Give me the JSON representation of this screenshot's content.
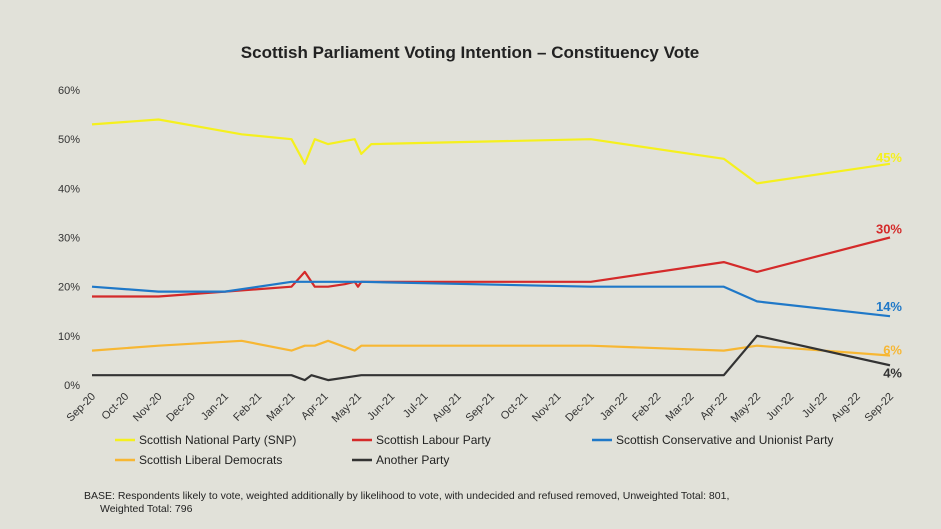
{
  "chart_data": {
    "type": "line",
    "title": "Scottish Parliament Voting Intention – Constituency Vote",
    "y_ticks": [
      "0%",
      "10%",
      "20%",
      "30%",
      "40%",
      "50%",
      "60%"
    ],
    "ylim": [
      0,
      60
    ],
    "x_ticks": [
      "Sep-20",
      "Oct-20",
      "Nov-20",
      "Dec-20",
      "Jan-21",
      "Feb-21",
      "Mar-21",
      "Apr-21",
      "May-21",
      "Jun-21",
      "Jul-21",
      "Aug-21",
      "Sep-21",
      "Oct-21",
      "Nov-21",
      "Dec-21",
      "Jan-22",
      "Feb-22",
      "Mar-22",
      "Apr-22",
      "May-22",
      "Jun-22",
      "Jul-22",
      "Aug-22",
      "Sep-22"
    ],
    "grid": false,
    "legend_placement": "bottom",
    "series": [
      {
        "name": "Scottish National Party (SNP)",
        "color": "#f5f01e",
        "end_label": "45%",
        "points": [
          [
            0,
            53
          ],
          [
            2,
            54
          ],
          [
            4.5,
            51
          ],
          [
            6,
            50
          ],
          [
            6.4,
            45
          ],
          [
            6.7,
            50
          ],
          [
            7.1,
            49
          ],
          [
            7.5,
            49.5
          ],
          [
            7.9,
            50
          ],
          [
            8.1,
            47
          ],
          [
            8.4,
            49
          ],
          [
            15,
            50
          ],
          [
            19,
            46
          ],
          [
            20,
            41
          ],
          [
            24,
            45
          ]
        ]
      },
      {
        "name": "Scottish Labour Party",
        "color": "#d42a2a",
        "end_label": "30%",
        "points": [
          [
            0,
            18
          ],
          [
            2,
            18
          ],
          [
            4,
            19
          ],
          [
            6,
            20
          ],
          [
            6.4,
            23
          ],
          [
            6.7,
            20
          ],
          [
            7.1,
            20
          ],
          [
            7.6,
            20.5
          ],
          [
            7.9,
            21
          ],
          [
            8,
            20
          ],
          [
            8.1,
            21
          ],
          [
            15,
            21
          ],
          [
            19,
            25
          ],
          [
            20,
            23
          ],
          [
            24,
            30
          ]
        ]
      },
      {
        "name": "Scottish Conservative and Unionist Party",
        "color": "#1f78c8",
        "end_label": "14%",
        "points": [
          [
            0,
            20
          ],
          [
            2,
            19
          ],
          [
            4,
            19
          ],
          [
            6,
            21
          ],
          [
            8.1,
            21
          ],
          [
            15,
            20
          ],
          [
            19,
            20
          ],
          [
            20,
            17
          ],
          [
            24,
            14
          ]
        ]
      },
      {
        "name": "Scottish Liberal Democrats",
        "color": "#f7b733",
        "end_label": "6%",
        "points": [
          [
            0,
            7
          ],
          [
            2,
            8
          ],
          [
            4.5,
            9
          ],
          [
            6,
            7
          ],
          [
            6.4,
            8
          ],
          [
            6.7,
            8
          ],
          [
            7.1,
            9
          ],
          [
            7.9,
            7
          ],
          [
            8.1,
            8
          ],
          [
            15,
            8
          ],
          [
            19,
            7
          ],
          [
            20,
            8
          ],
          [
            24,
            6
          ]
        ]
      },
      {
        "name": "Another Party",
        "color": "#333333",
        "end_label": "4%",
        "points": [
          [
            0,
            2
          ],
          [
            6,
            2
          ],
          [
            6.4,
            1
          ],
          [
            6.6,
            2
          ],
          [
            7.1,
            1
          ],
          [
            8.1,
            2
          ],
          [
            19,
            2
          ],
          [
            20,
            10
          ],
          [
            24,
            4
          ]
        ]
      }
    ]
  },
  "footnote": {
    "line1": "BASE: Respondents likely to vote, weighted additionally by likelihood to vote, with undecided and refused removed, Unweighted Total: 801,",
    "line2": "Weighted Total: 796"
  }
}
